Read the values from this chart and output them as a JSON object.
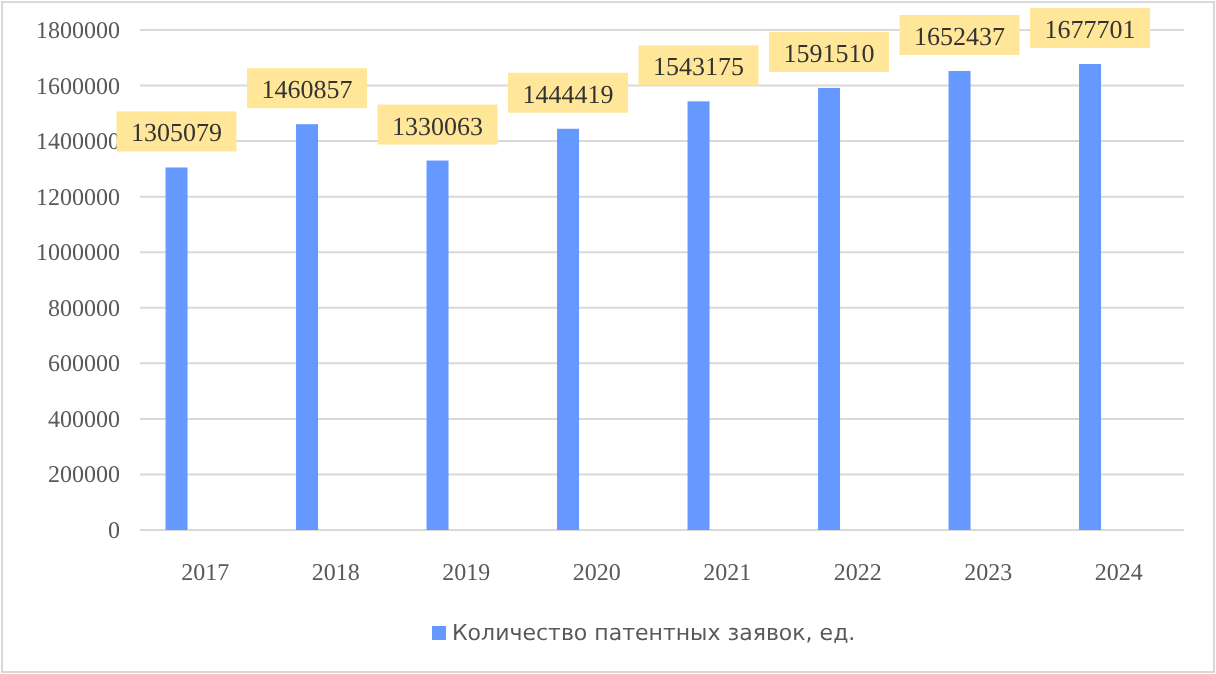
{
  "chart_data": {
    "type": "bar",
    "categories": [
      "2017",
      "2018",
      "2019",
      "2020",
      "2021",
      "2022",
      "2023",
      "2024"
    ],
    "series": [
      {
        "name": "Количество патентных заявок, ед.",
        "color": "#6699ff",
        "values": [
          1305079,
          1460857,
          1330063,
          1444419,
          1543175,
          1591510,
          1652437,
          1677701
        ]
      }
    ],
    "ylim": [
      0,
      1800000
    ],
    "yticks": [
      0,
      200000,
      400000,
      600000,
      800000,
      1000000,
      1200000,
      1400000,
      1600000,
      1800000
    ],
    "grid": "y",
    "legend": "bottom",
    "data_labels": true
  }
}
